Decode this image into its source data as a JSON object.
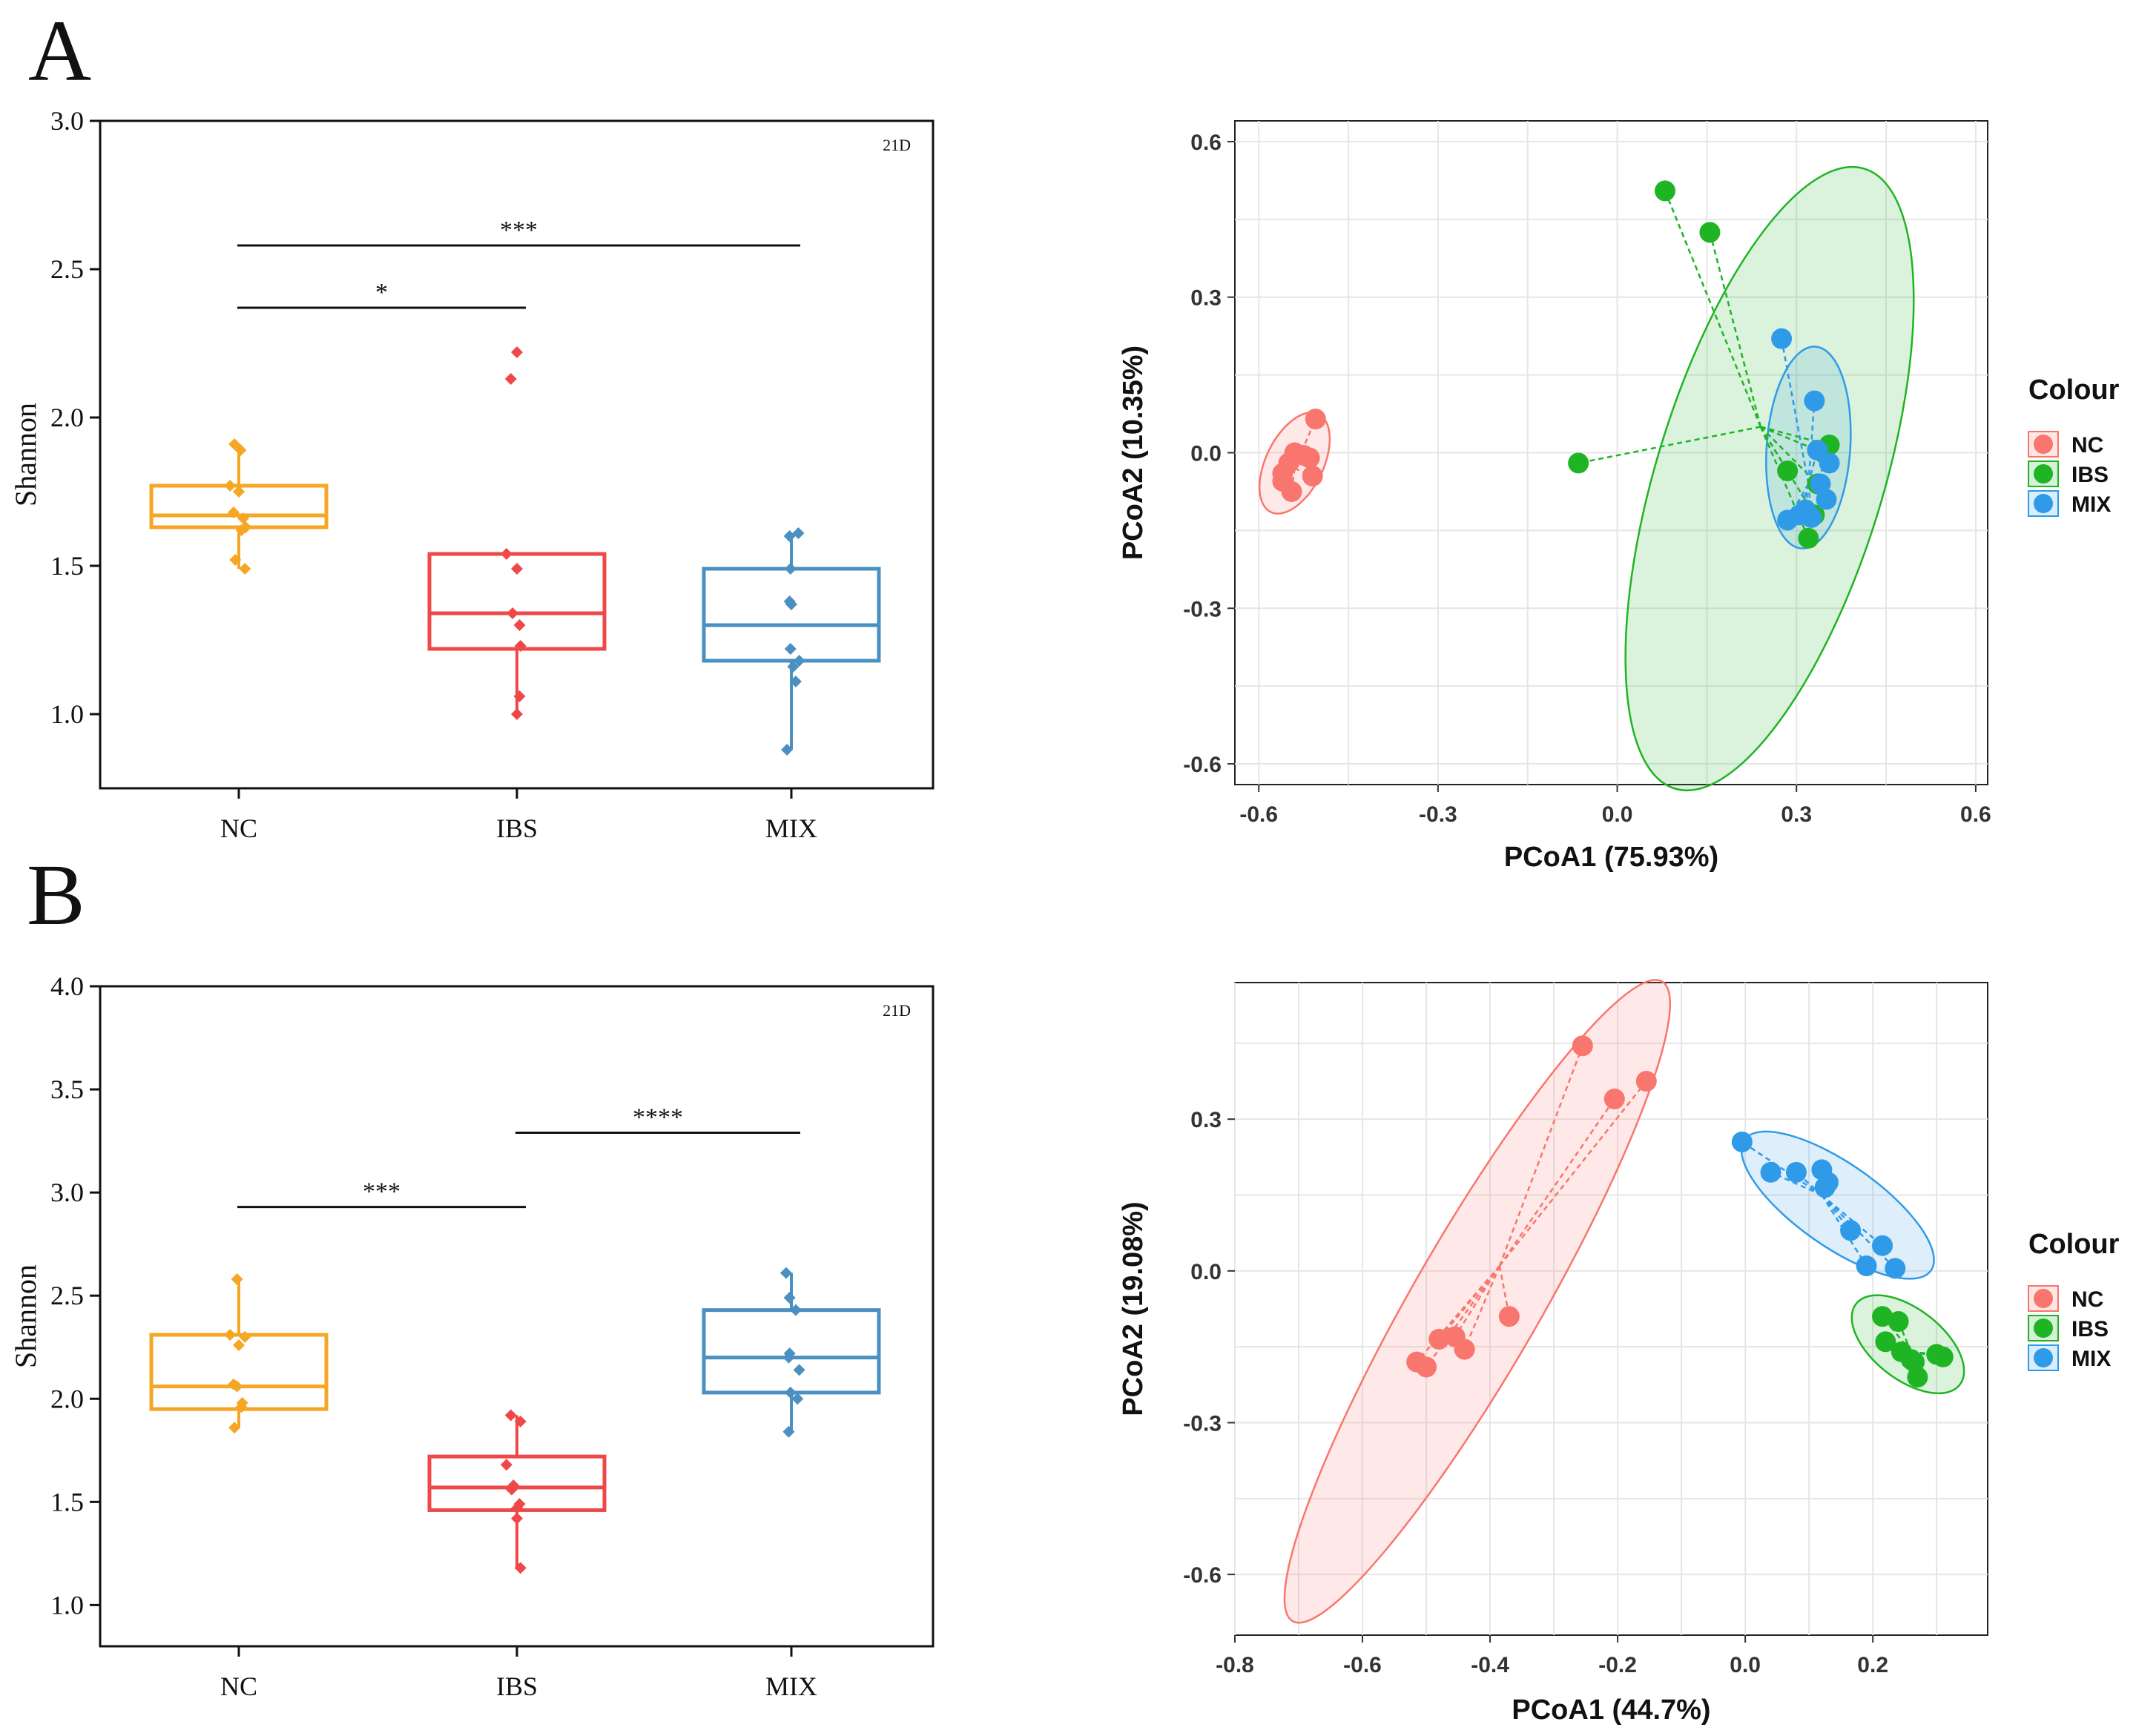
{
  "panel_labels": [
    "A",
    "B"
  ],
  "colors": {
    "NC_box": "#f5a623",
    "IBS_box": "#f04848",
    "MIX_box": "#4a90c0",
    "NC_pcoa": "#f8766d",
    "IBS_pcoa": "#1fb424",
    "MIX_pcoa": "#2f9be8",
    "grid": "#e6e6e6",
    "ink": "#111111"
  },
  "chart_data": [
    {
      "id": "A_box",
      "type": "box",
      "panel": "A",
      "title": "",
      "tag": "21D",
      "xlabel": "",
      "ylabel": "Shannon",
      "ylim": [
        0.75,
        3.0
      ],
      "yticks": [
        1.0,
        1.5,
        2.0,
        2.5,
        3.0
      ],
      "ytick_labels": [
        "1.0",
        "1.5",
        "2.0",
        "2.5",
        "3.0"
      ],
      "categories": [
        "NC",
        "IBS",
        "MIX"
      ],
      "groups": [
        {
          "name": "NC",
          "color": "#f5a623",
          "q1": 1.63,
          "median": 1.67,
          "q3": 1.77,
          "whisker_low": 1.49,
          "whisker_high": 1.91,
          "points": [
            1.91,
            1.89,
            1.77,
            1.75,
            1.68,
            1.66,
            1.63,
            1.62,
            1.52,
            1.49
          ],
          "jitter": [
            -0.05,
            0.02,
            -0.1,
            0.0,
            -0.06,
            0.05,
            0.08,
            0.03,
            -0.04,
            0.07
          ]
        },
        {
          "name": "IBS",
          "color": "#f04848",
          "q1": 1.22,
          "median": 1.34,
          "q3": 1.54,
          "whisker_low": 0.99,
          "whisker_high": 1.54,
          "points": [
            2.22,
            2.13,
            1.54,
            1.49,
            1.34,
            1.3,
            1.23,
            1.06,
            1.0
          ],
          "jitter": [
            0.0,
            -0.07,
            -0.12,
            0.0,
            -0.05,
            0.03,
            0.04,
            0.03,
            0.0
          ]
        },
        {
          "name": "MIX",
          "color": "#4a90c0",
          "q1": 1.18,
          "median": 1.3,
          "q3": 1.49,
          "whisker_low": 0.88,
          "whisker_high": 1.61,
          "points": [
            1.61,
            1.6,
            1.49,
            1.38,
            1.37,
            1.22,
            1.18,
            1.16,
            1.11,
            0.88
          ],
          "jitter": [
            0.08,
            -0.02,
            -0.01,
            -0.02,
            0.0,
            -0.01,
            0.09,
            0.02,
            0.05,
            -0.05
          ]
        }
      ],
      "significance": [
        {
          "from": "NC",
          "to": "MIX",
          "y": 2.58,
          "label": "***"
        },
        {
          "from": "NC",
          "to": "IBS",
          "y": 2.37,
          "label": "*"
        }
      ]
    },
    {
      "id": "A_pcoa",
      "type": "scatter",
      "panel": "A",
      "title": "",
      "xlabel": "PCoA1 (75.93%)",
      "ylabel": "PCoA2 (10.35%)",
      "xlim": [
        -0.64,
        0.62
      ],
      "ylim": [
        -0.64,
        0.64
      ],
      "xticks": [
        -0.6,
        -0.3,
        0.0,
        0.3,
        0.6
      ],
      "xtick_labels": [
        "-0.6",
        "-0.3",
        "0.0",
        "0.3",
        "0.6"
      ],
      "yticks": [
        -0.6,
        -0.3,
        0.0,
        0.3,
        0.6
      ],
      "ytick_labels": [
        "-0.6",
        "-0.3",
        "0.0",
        "0.3",
        "0.6"
      ],
      "legend": {
        "title": "Colour",
        "entries": [
          "NC",
          "IBS",
          "MIX"
        ],
        "position": "right"
      },
      "series": [
        {
          "name": "NC",
          "color": "#f8766d",
          "centroid": [
            -0.54,
            -0.03
          ],
          "points": [
            [
              -0.505,
              0.065
            ],
            [
              -0.525,
              -0.005
            ],
            [
              -0.54,
              0.0
            ],
            [
              -0.55,
              -0.02
            ],
            [
              -0.56,
              -0.04
            ],
            [
              -0.56,
              -0.055
            ],
            [
              -0.51,
              -0.045
            ],
            [
              -0.545,
              -0.075
            ],
            [
              -0.515,
              -0.01
            ]
          ],
          "ellipse": {
            "cx": -0.54,
            "cy": -0.02,
            "rx": 0.048,
            "ry": 0.105,
            "angle": 26
          }
        },
        {
          "name": "IBS",
          "color": "#1fb424",
          "centroid": [
            0.24,
            0.05
          ],
          "points": [
            [
              0.08,
              0.505
            ],
            [
              0.155,
              0.425
            ],
            [
              -0.065,
              -0.02
            ],
            [
              0.285,
              -0.035
            ],
            [
              0.335,
              -0.06
            ],
            [
              0.355,
              0.015
            ],
            [
              0.33,
              -0.12
            ],
            [
              0.32,
              -0.165
            ],
            [
              0.345,
              0.0
            ]
          ],
          "ellipse": {
            "cx": 0.255,
            "cy": -0.05,
            "rx": 0.19,
            "ry": 0.625,
            "angle": 17
          }
        },
        {
          "name": "MIX",
          "color": "#2f9be8",
          "centroid": [
            0.32,
            -0.06
          ],
          "points": [
            [
              0.275,
              0.22
            ],
            [
              0.33,
              0.1
            ],
            [
              0.335,
              0.005
            ],
            [
              0.355,
              -0.02
            ],
            [
              0.34,
              -0.06
            ],
            [
              0.35,
              -0.09
            ],
            [
              0.285,
              -0.13
            ],
            [
              0.305,
              -0.12
            ],
            [
              0.315,
              -0.11
            ],
            [
              0.325,
              -0.125
            ]
          ],
          "ellipse": {
            "cx": 0.32,
            "cy": 0.01,
            "rx": 0.07,
            "ry": 0.195,
            "angle": 4
          }
        }
      ]
    },
    {
      "id": "B_box",
      "type": "box",
      "panel": "B",
      "title": "",
      "tag": "21D",
      "xlabel": "",
      "ylabel": "Shannon",
      "ylim": [
        0.8,
        4.0
      ],
      "yticks": [
        1.0,
        1.5,
        2.0,
        2.5,
        3.0,
        3.5,
        4.0
      ],
      "ytick_labels": [
        "1.0",
        "1.5",
        "2.0",
        "2.5",
        "3.0",
        "3.5",
        "4.0"
      ],
      "categories": [
        "NC",
        "IBS",
        "MIX"
      ],
      "groups": [
        {
          "name": "NC",
          "color": "#f5a623",
          "q1": 1.95,
          "median": 2.06,
          "q3": 2.31,
          "whisker_low": 1.86,
          "whisker_high": 2.58,
          "points": [
            2.58,
            2.31,
            2.3,
            2.26,
            2.07,
            2.06,
            1.98,
            1.96,
            1.86
          ],
          "jitter": [
            -0.02,
            -0.1,
            0.07,
            0.0,
            -0.06,
            -0.02,
            0.04,
            0.03,
            -0.05
          ]
        },
        {
          "name": "IBS",
          "color": "#f04848",
          "q1": 1.46,
          "median": 1.57,
          "q3": 1.72,
          "whisker_low": 1.18,
          "whisker_high": 1.92,
          "points": [
            1.92,
            1.89,
            1.68,
            1.58,
            1.56,
            1.49,
            1.47,
            1.42,
            1.18
          ],
          "jitter": [
            -0.07,
            0.04,
            -0.12,
            -0.04,
            -0.06,
            0.03,
            0.0,
            0.0,
            0.04
          ]
        },
        {
          "name": "MIX",
          "color": "#4a90c0",
          "q1": 2.03,
          "median": 2.2,
          "q3": 2.43,
          "whisker_low": 1.84,
          "whisker_high": 2.61,
          "points": [
            2.61,
            2.49,
            2.43,
            2.22,
            2.2,
            2.14,
            2.03,
            2.0,
            1.84
          ],
          "jitter": [
            -0.06,
            -0.02,
            0.05,
            -0.02,
            -0.03,
            0.09,
            -0.01,
            0.07,
            -0.03
          ]
        }
      ],
      "significance": [
        {
          "from": "IBS",
          "to": "MIX",
          "y": 3.29,
          "label": "****"
        },
        {
          "from": "NC",
          "to": "IBS",
          "y": 2.93,
          "label": "***"
        }
      ]
    },
    {
      "id": "B_pcoa",
      "type": "scatter",
      "panel": "B",
      "title": "",
      "xlabel": "PCoA1 (44.7%)",
      "ylabel": "PCoA2 (19.08%)",
      "xlim": [
        -0.8,
        0.38
      ],
      "ylim": [
        -0.72,
        0.57
      ],
      "xticks": [
        -0.8,
        -0.6,
        -0.4,
        -0.2,
        0.0,
        0.2
      ],
      "xtick_labels": [
        "-0.8",
        "-0.6",
        "-0.4",
        "-0.2",
        "0.0",
        "0.2"
      ],
      "yticks": [
        -0.6,
        -0.3,
        0.0,
        0.3
      ],
      "ytick_labels": [
        "-0.6",
        "-0.3",
        "0.0",
        "0.3"
      ],
      "legend": {
        "title": "Colour",
        "entries": [
          "NC",
          "IBS",
          "MIX"
        ],
        "position": "right"
      },
      "series": [
        {
          "name": "NC",
          "color": "#f8766d",
          "centroid": [
            -0.385,
            0.01
          ],
          "points": [
            [
              -0.255,
              0.445
            ],
            [
              -0.205,
              0.34
            ],
            [
              -0.155,
              0.375
            ],
            [
              -0.37,
              -0.09
            ],
            [
              -0.44,
              -0.155
            ],
            [
              -0.455,
              -0.13
            ],
            [
              -0.48,
              -0.135
            ],
            [
              -0.5,
              -0.19
            ],
            [
              -0.515,
              -0.18
            ]
          ],
          "ellipse": {
            "cx": -0.42,
            "cy": -0.06,
            "rx": 0.1,
            "ry": 0.73,
            "angle": 30
          }
        },
        {
          "name": "IBS",
          "color": "#1fb424",
          "centroid": [
            0.26,
            -0.16
          ],
          "points": [
            [
              0.215,
              -0.09
            ],
            [
              0.24,
              -0.1
            ],
            [
              0.22,
              -0.14
            ],
            [
              0.245,
              -0.16
            ],
            [
              0.26,
              -0.175
            ],
            [
              0.265,
              -0.18
            ],
            [
              0.3,
              -0.165
            ],
            [
              0.31,
              -0.17
            ],
            [
              0.27,
              -0.21
            ]
          ],
          "ellipse": {
            "cx": 0.255,
            "cy": -0.145,
            "rx": 0.055,
            "ry": 0.13,
            "angle": -52
          }
        },
        {
          "name": "MIX",
          "color": "#2f9be8",
          "centroid": [
            0.12,
            0.15
          ],
          "points": [
            [
              -0.005,
              0.255
            ],
            [
              0.04,
              0.195
            ],
            [
              0.08,
              0.195
            ],
            [
              0.12,
              0.2
            ],
            [
              0.13,
              0.175
            ],
            [
              0.125,
              0.165
            ],
            [
              0.165,
              0.08
            ],
            [
              0.215,
              0.05
            ],
            [
              0.19,
              0.01
            ],
            [
              0.235,
              0.005
            ]
          ],
          "ellipse": {
            "cx": 0.145,
            "cy": 0.13,
            "rx": 0.065,
            "ry": 0.225,
            "angle": -55
          }
        }
      ]
    }
  ]
}
